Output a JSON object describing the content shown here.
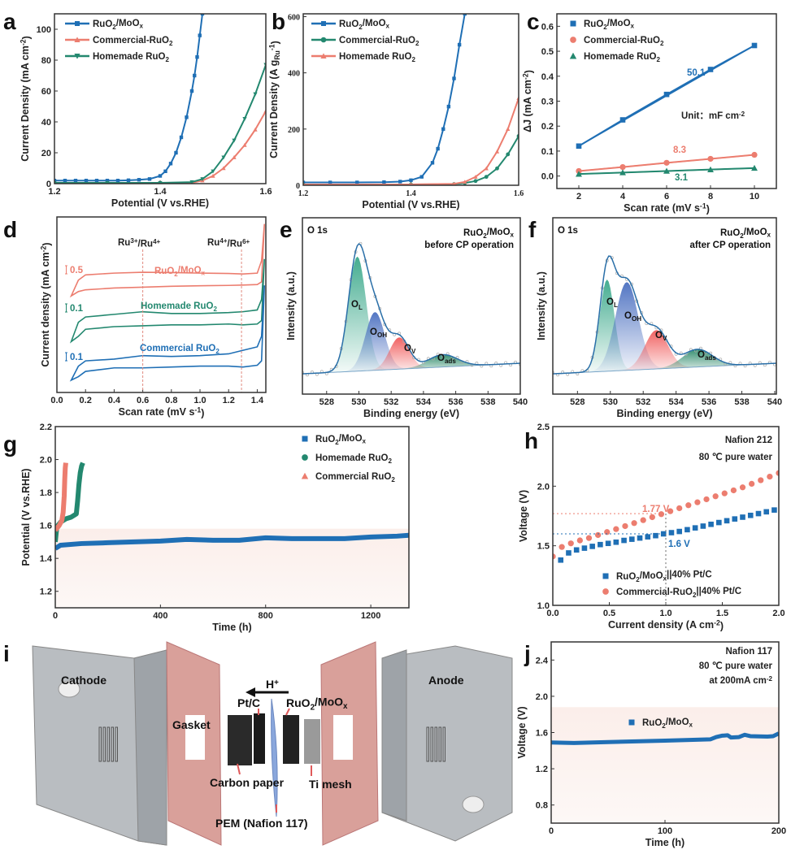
{
  "colors": {
    "blue": "#1f6fb5",
    "red": "#ec7d6f",
    "green": "#23886f",
    "grey": "#555555"
  },
  "chart_data": [
    {
      "id": "a",
      "panel_label": "a",
      "type": "line",
      "xlabel": "Potential (V vs.RHE)",
      "ylabel": "Current Density (mA cm^{-2})",
      "xlim": [
        1.2,
        1.6
      ],
      "ylim": [
        0,
        110
      ],
      "xticks": [
        "1.2",
        "1.4",
        "1.6"
      ],
      "yticks": [
        "0",
        "20",
        "40",
        "60",
        "80",
        "100"
      ],
      "series": [
        {
          "name": "RuO_{2}/MoO_{x}",
          "color": "#1f6fb5",
          "marker": "square",
          "x": [
            1.2,
            1.22,
            1.24,
            1.26,
            1.28,
            1.3,
            1.32,
            1.34,
            1.36,
            1.38,
            1.4,
            1.41,
            1.42,
            1.43,
            1.44,
            1.45,
            1.46,
            1.465,
            1.47,
            1.475,
            1.48
          ],
          "y": [
            2,
            2,
            2,
            2,
            2,
            2,
            2,
            2.2,
            2.5,
            3,
            5,
            8,
            13,
            20,
            30,
            43,
            60,
            70,
            82,
            96,
            110
          ]
        },
        {
          "name": "Commercial-RuO_{2}",
          "color": "#ec7d6f",
          "marker": "triangle-up",
          "x": [
            1.2,
            1.3,
            1.4,
            1.46,
            1.48,
            1.5,
            1.52,
            1.54,
            1.56,
            1.58,
            1.6
          ],
          "y": [
            0.3,
            0.3,
            0.3,
            0.5,
            2,
            5,
            10,
            17,
            25,
            35,
            47
          ]
        },
        {
          "name": "Homemade RuO_{2}",
          "color": "#23886f",
          "marker": "triangle-down",
          "x": [
            1.2,
            1.3,
            1.4,
            1.46,
            1.48,
            1.5,
            1.52,
            1.54,
            1.56,
            1.58,
            1.6
          ],
          "y": [
            0.5,
            0.5,
            0.5,
            1,
            3,
            8,
            17,
            28,
            42,
            58,
            77
          ]
        }
      ]
    },
    {
      "id": "b",
      "panel_label": "b",
      "type": "line",
      "xlabel": "Potential (V vs.RHE)",
      "ylabel": "Current Density (A g_{Ru}^{-1})",
      "xlim": [
        1.2,
        1.6
      ],
      "ylim": [
        0,
        610
      ],
      "xticks": [
        "1.2",
        "1.4",
        "1.6"
      ],
      "yticks": [
        "0",
        "200",
        "400",
        "600"
      ],
      "series": [
        {
          "name": "RuO_{2}/MoO_{x}",
          "color": "#1f6fb5",
          "marker": "square",
          "x": [
            1.2,
            1.25,
            1.3,
            1.35,
            1.38,
            1.4,
            1.42,
            1.44,
            1.45,
            1.46,
            1.47,
            1.48,
            1.49,
            1.5
          ],
          "y": [
            10,
            10,
            10,
            11,
            13,
            18,
            30,
            80,
            130,
            200,
            280,
            380,
            500,
            610
          ]
        },
        {
          "name": "Commercial-RuO_{2}",
          "color": "#23886f",
          "marker": "circle",
          "x": [
            1.2,
            1.4,
            1.48,
            1.5,
            1.52,
            1.54,
            1.56,
            1.58,
            1.6
          ],
          "y": [
            3,
            3,
            4,
            8,
            15,
            30,
            60,
            110,
            175
          ]
        },
        {
          "name": "Homemade RuO_{2}",
          "color": "#ec7d6f",
          "marker": "triangle-up",
          "x": [
            1.2,
            1.4,
            1.48,
            1.5,
            1.52,
            1.54,
            1.56,
            1.58,
            1.6
          ],
          "y": [
            3,
            3,
            5,
            12,
            30,
            60,
            120,
            200,
            310
          ]
        }
      ]
    },
    {
      "id": "c",
      "panel_label": "c",
      "type": "scatter-fit",
      "xlabel": "Scan rate (mV s^{-1})",
      "ylabel": "ΔJ (mA cm^{-2})",
      "xlim": [
        1,
        11
      ],
      "ylim": [
        -0.05,
        0.65
      ],
      "xticks": [
        "2",
        "4",
        "6",
        "8",
        "10"
      ],
      "yticks": [
        "0.0",
        "0.1",
        "0.2",
        "0.3",
        "0.4",
        "0.5",
        "0.6"
      ],
      "series": [
        {
          "name": "RuO_{2}/MoO_{x}",
          "color": "#1f6fb5",
          "marker": "square",
          "x": [
            2,
            4,
            6,
            8,
            10
          ],
          "y": [
            0.12,
            0.225,
            0.327,
            0.427,
            0.523
          ],
          "slope_label": "50.1"
        },
        {
          "name": "Commercial-RuO_{2}",
          "color": "#ec7d6f",
          "marker": "circle",
          "x": [
            2,
            4,
            6,
            8,
            10
          ],
          "y": [
            0.02,
            0.036,
            0.053,
            0.069,
            0.085
          ],
          "slope_label": "8.3"
        },
        {
          "name": "Homemade RuO_{2}",
          "color": "#23886f",
          "marker": "triangle-up",
          "x": [
            2,
            4,
            6,
            8,
            10
          ],
          "y": [
            0.008,
            0.014,
            0.02,
            0.026,
            0.032
          ],
          "slope_label": "3.1"
        }
      ],
      "annotations": [
        "Unit：mF cm^{-2}"
      ]
    },
    {
      "id": "d",
      "panel_label": "d",
      "type": "cv",
      "xlabel": "Scan rate (mV s^{-1})",
      "ylabel": "Current density (mA cm^{-2})",
      "xlim": [
        0,
        1.46
      ],
      "ylim": [
        0,
        10
      ],
      "xticks": [
        "0.0",
        "0.2",
        "0.4",
        "0.6",
        "0.8",
        "1.0",
        "1.2",
        "1.4"
      ],
      "yticks": [],
      "x": [
        0.1,
        0.15,
        0.2,
        0.4,
        0.6,
        0.8,
        1.0,
        1.2,
        1.3,
        1.4,
        1.43,
        1.45
      ],
      "series": [
        {
          "name": "RuO_{2}/MoO_{x}",
          "color": "#ec7d6f",
          "scale_bar": "0.5",
          "upper": [
            5.5,
            6.4,
            6.7,
            6.8,
            6.85,
            6.83,
            6.8,
            6.78,
            6.75,
            6.8,
            7.5,
            9.6
          ],
          "lower": [
            5.5,
            5.75,
            5.85,
            5.95,
            6.0,
            6.05,
            6.08,
            6.1,
            6.12,
            6.15,
            6.3,
            9.6
          ]
        },
        {
          "name": "Homemade RuO_{2}",
          "color": "#23886f",
          "scale_bar": "0.1",
          "upper": [
            2.9,
            4.0,
            4.3,
            4.45,
            4.6,
            4.5,
            4.5,
            4.55,
            4.6,
            4.7,
            5.3,
            7.6
          ],
          "lower": [
            2.9,
            3.2,
            3.6,
            3.75,
            3.8,
            3.85,
            3.85,
            3.9,
            3.85,
            3.9,
            4.1,
            7.6
          ]
        },
        {
          "name": "Commercial RuO_{2}",
          "color": "#1f6fb5",
          "scale_bar": "0.1",
          "upper": [
            0.7,
            1.5,
            1.8,
            1.9,
            2.1,
            2.05,
            2.1,
            2.2,
            2.4,
            2.6,
            3.2,
            6.1
          ],
          "lower": [
            0.7,
            0.9,
            1.2,
            1.4,
            1.4,
            1.45,
            1.5,
            1.5,
            1.45,
            1.55,
            1.8,
            6.1
          ]
        }
      ],
      "vlines": [
        {
          "x": 0.6,
          "label": "Ru^{3+}/Ru^{4+}"
        },
        {
          "x": 1.29,
          "label": "Ru^{4+}/Ru^{6+}"
        }
      ]
    },
    {
      "id": "e",
      "panel_label": "e",
      "type": "xps",
      "xlabel": "Binding energy (eV)",
      "ylabel": "Intensity (a.u.)",
      "xlim": [
        526.5,
        540
      ],
      "ylim": [
        0,
        1
      ],
      "xticks": [
        "528",
        "530",
        "532",
        "534",
        "536",
        "538",
        "540"
      ],
      "yticks": [],
      "core_level": "O 1s",
      "sample": "RuO_{2}/MoO_{x}",
      "condition": "before CP operation",
      "baseline": [
        0.115,
        0.175
      ],
      "components": [
        {
          "label": "O_{L}",
          "center": 529.9,
          "height": 0.65,
          "width": 0.55,
          "color": "#3aa88a"
        },
        {
          "label": "O_{OH}",
          "center": 531.0,
          "height": 0.33,
          "width": 0.6,
          "color": "#4a6fc0"
        },
        {
          "label": "O_{V}",
          "center": 532.5,
          "height": 0.18,
          "width": 0.6,
          "color": "#f05a5a"
        },
        {
          "label": "O_{ads}",
          "center": 535.2,
          "height": 0.07,
          "width": 0.9,
          "color": "#2e8b6a"
        }
      ]
    },
    {
      "id": "f",
      "panel_label": "f",
      "type": "xps",
      "xlabel": "Binding energy (eV)",
      "ylabel": "Intensity (a.u.)",
      "xlim": [
        526.5,
        540.1
      ],
      "ylim": [
        0,
        1
      ],
      "xticks": [
        "528",
        "530",
        "532",
        "534",
        "536",
        "538",
        "540"
      ],
      "yticks": [],
      "core_level": "O 1s",
      "sample": "RuO_{2}/MoO_{x}",
      "condition": "after CP operation",
      "baseline": [
        0.115,
        0.175
      ],
      "components": [
        {
          "label": "O_{L}",
          "center": 529.8,
          "height": 0.52,
          "width": 0.45,
          "color": "#3aa88a"
        },
        {
          "label": "O_{OH}",
          "center": 531.0,
          "height": 0.5,
          "width": 0.7,
          "color": "#4a6fc0"
        },
        {
          "label": "O_{V}",
          "center": 532.8,
          "height": 0.22,
          "width": 0.7,
          "color": "#f05a5a"
        },
        {
          "label": "O_{ads}",
          "center": 535.3,
          "height": 0.1,
          "width": 0.9,
          "color": "#2e8b6a"
        }
      ]
    },
    {
      "id": "g",
      "panel_label": "g",
      "type": "line",
      "xlabel": "Time (h)",
      "ylabel": "Potential (V vs.RHE)",
      "xlim": [
        0,
        1345
      ],
      "ylim": [
        1.1,
        2.2
      ],
      "xticks": [
        "0",
        "400",
        "800",
        "1200"
      ],
      "yticks": [
        "1.2",
        "1.4",
        "1.6",
        "1.8",
        "2.0",
        "2.2"
      ],
      "series": [
        {
          "name": "RuO_{2}/MoO_{x}",
          "color": "#1f6fb5",
          "marker": "square",
          "x": [
            0,
            20,
            100,
            200,
            300,
            400,
            500,
            600,
            700,
            800,
            900,
            1000,
            1100,
            1200,
            1300,
            1345
          ],
          "y": [
            1.46,
            1.48,
            1.49,
            1.495,
            1.5,
            1.505,
            1.515,
            1.51,
            1.51,
            1.525,
            1.52,
            1.52,
            1.52,
            1.53,
            1.535,
            1.54
          ]
        },
        {
          "name": "Homemade RuO_{2}",
          "color": "#23886f",
          "marker": "circle",
          "x": [
            0,
            5,
            10,
            20,
            40,
            60,
            80,
            85,
            90,
            95,
            100,
            105
          ],
          "y": [
            1.5,
            1.58,
            1.6,
            1.62,
            1.64,
            1.65,
            1.67,
            1.75,
            1.85,
            1.92,
            1.96,
            1.98
          ]
        },
        {
          "name": "Commercial RuO_{2}",
          "color": "#ec7d6f",
          "marker": "triangle-up",
          "x": [
            0,
            5,
            15,
            25,
            30,
            34,
            36,
            38,
            40
          ],
          "y": [
            1.57,
            1.58,
            1.6,
            1.63,
            1.68,
            1.78,
            1.88,
            1.95,
            1.98
          ]
        }
      ]
    },
    {
      "id": "h",
      "panel_label": "h",
      "type": "scatter",
      "xlabel": "Current density (A cm^{-2})",
      "ylabel": "Voltage (V)",
      "xlim": [
        0,
        2
      ],
      "ylim": [
        1,
        2.5
      ],
      "xticks": [
        "0.0",
        "0.5",
        "1.0",
        "1.5",
        "2.0"
      ],
      "yticks": [
        "1.0",
        "1.5",
        "2.0",
        "2.5"
      ],
      "notes": [
        "Nafion 212",
        "80 ℃ pure water"
      ],
      "series": [
        {
          "name": "RuO_{2}/MoO_{x}||40% Pt/C",
          "color": "#1f6fb5",
          "marker": "square",
          "x": [
            0.07,
            0.14,
            0.21,
            0.28,
            0.35,
            0.42,
            0.49,
            0.56,
            0.63,
            0.7,
            0.77,
            0.84,
            0.91,
            0.98,
            1.05,
            1.12,
            1.19,
            1.26,
            1.33,
            1.4,
            1.47,
            1.54,
            1.61,
            1.68,
            1.75,
            1.82,
            1.89,
            1.96
          ],
          "y": [
            1.38,
            1.44,
            1.465,
            1.48,
            1.495,
            1.51,
            1.52,
            1.53,
            1.545,
            1.555,
            1.565,
            1.575,
            1.585,
            1.6,
            1.61,
            1.62,
            1.635,
            1.65,
            1.665,
            1.68,
            1.695,
            1.71,
            1.725,
            1.74,
            1.755,
            1.77,
            1.785,
            1.8
          ]
        },
        {
          "name": "Commercial-RuO_{2}||40% Pt/C",
          "color": "#ec7d6f",
          "marker": "circle",
          "x": [
            0,
            0.08,
            0.16,
            0.24,
            0.32,
            0.4,
            0.48,
            0.56,
            0.64,
            0.72,
            0.8,
            0.88,
            0.96,
            1.04,
            1.12,
            1.2,
            1.28,
            1.36,
            1.44,
            1.52,
            1.6,
            1.68,
            1.76,
            1.84,
            1.92,
            2.0
          ],
          "y": [
            1.41,
            1.49,
            1.52,
            1.545,
            1.565,
            1.59,
            1.615,
            1.64,
            1.665,
            1.69,
            1.715,
            1.74,
            1.765,
            1.79,
            1.815,
            1.84,
            1.865,
            1.89,
            1.915,
            1.94,
            1.965,
            1.99,
            2.02,
            2.05,
            2.08,
            2.11
          ]
        }
      ],
      "reference": {
        "x": 1.0,
        "levels": [
          {
            "y": 1.77,
            "label": "1.77 V",
            "color": "#ec7d6f"
          },
          {
            "y": 1.6,
            "label": "1.6 V",
            "color": "#1f6fb5"
          }
        ]
      }
    },
    {
      "id": "j",
      "panel_label": "j",
      "type": "line",
      "xlabel": "Time (h)",
      "ylabel": "Voltage (V)",
      "xlim": [
        0,
        200
      ],
      "ylim": [
        0.6,
        2.6
      ],
      "xticks": [
        "0",
        "100",
        "200"
      ],
      "yticks": [
        "0.8",
        "1.2",
        "1.6",
        "2.0",
        "2.4"
      ],
      "notes": [
        "Nafion 117",
        "80 ℃ pure water",
        "at 200mA cm^{-2}"
      ],
      "series": [
        {
          "name": "RuO_{2}/MoO_{x}",
          "color": "#1f6fb5",
          "marker": "square",
          "x": [
            0,
            20,
            50,
            100,
            140,
            145,
            150,
            155,
            158,
            165,
            170,
            175,
            190,
            195,
            200
          ],
          "y": [
            1.49,
            1.485,
            1.495,
            1.51,
            1.525,
            1.55,
            1.565,
            1.57,
            1.545,
            1.55,
            1.575,
            1.56,
            1.555,
            1.56,
            1.59
          ]
        }
      ]
    }
  ],
  "illustration": {
    "panel_label": "i",
    "labels": {
      "cathode": "Cathode",
      "anode": "Anode",
      "gasket": "Gasket",
      "pt_c": "Pt/C",
      "proton": "H^{+}",
      "anode_catalyst": "RuO_{2}/MoO_{x}",
      "carbon_paper": "Carbon paper",
      "ti_mesh": "Ti mesh",
      "pem": "PEM (Nafion 117)"
    }
  }
}
